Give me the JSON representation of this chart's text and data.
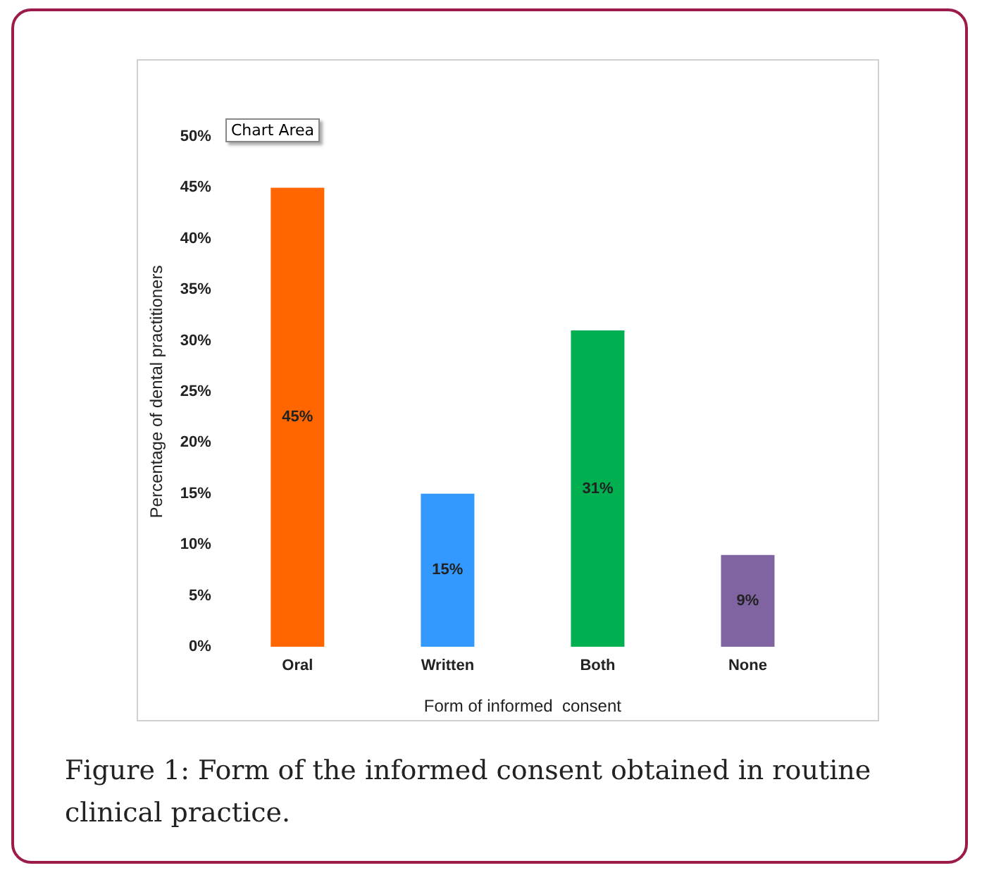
{
  "chart_data": {
    "type": "bar",
    "xlabel": "Form of informed  consent",
    "ylabel": "Percentage of dental practitioners",
    "categories": [
      "Oral",
      "Written",
      "Both",
      "None"
    ],
    "values": [
      45,
      15,
      31,
      9
    ],
    "colors": [
      "#ff6600",
      "#3399ff",
      "#00b050",
      "#8064a2"
    ],
    "ylim": [
      0,
      50
    ],
    "yticks": [
      {
        "value": 0,
        "label": "0%"
      },
      {
        "value": 5,
        "label": "5%"
      },
      {
        "value": 10,
        "label": "10%"
      },
      {
        "value": 15,
        "label": "15%"
      },
      {
        "value": 20,
        "label": "20%"
      },
      {
        "value": 25,
        "label": "25%"
      },
      {
        "value": 30,
        "label": "30%"
      },
      {
        "value": 35,
        "label": "35%"
      },
      {
        "value": 40,
        "label": "40%"
      },
      {
        "value": 45,
        "label": "45%"
      },
      {
        "value": 50,
        "label": "50%"
      }
    ],
    "value_labels": [
      "45%",
      "15%",
      "31%",
      "9%"
    ],
    "grid": false,
    "annotations": [
      "Chart Area",
      "Figure 1: Form of the informed consent obtained in routine clinical practice."
    ]
  }
}
